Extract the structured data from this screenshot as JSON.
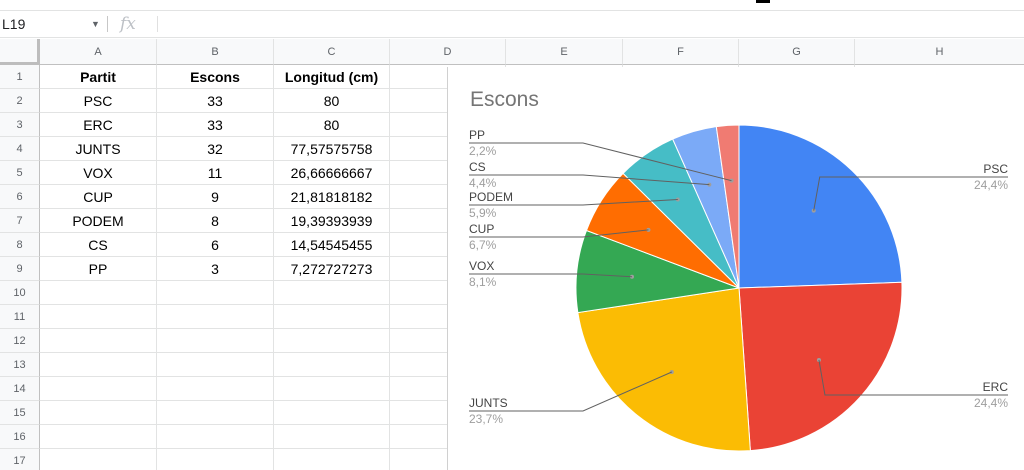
{
  "formula_bar": {
    "cell_reference": "L19",
    "fx_icon": "fx",
    "formula": ""
  },
  "columns": [
    "A",
    "B",
    "C",
    "D",
    "E",
    "F",
    "G",
    "H"
  ],
  "rows": [
    "1",
    "2",
    "3",
    "4",
    "5",
    "6",
    "7",
    "8",
    "9",
    "10",
    "11",
    "12",
    "13",
    "14",
    "15",
    "16",
    "17"
  ],
  "table": {
    "headers": [
      "Partit",
      "Escons",
      "Longitud (cm)"
    ],
    "rows": [
      [
        "PSC",
        "33",
        "80"
      ],
      [
        "ERC",
        "33",
        "80"
      ],
      [
        "JUNTS",
        "32",
        "77,57575758"
      ],
      [
        "VOX",
        "11",
        "26,66666667"
      ],
      [
        "CUP",
        "9",
        "21,81818182"
      ],
      [
        "PODEM",
        "8",
        "19,39393939"
      ],
      [
        "CS",
        "6",
        "14,54545455"
      ],
      [
        "PP",
        "3",
        "7,272727273"
      ]
    ]
  },
  "chart_data": {
    "type": "pie",
    "title": "Escons",
    "categories": [
      "PSC",
      "ERC",
      "JUNTS",
      "VOX",
      "CUP",
      "PODEM",
      "CS",
      "PP"
    ],
    "values": [
      33,
      33,
      32,
      11,
      9,
      8,
      6,
      3
    ],
    "percent_labels": [
      "24,4%",
      "24,4%",
      "23,7%",
      "8,1%",
      "6,7%",
      "5,9%",
      "4,4%",
      "2,2%"
    ],
    "colors": [
      "#4285f4",
      "#ea4335",
      "#fbbc04",
      "#34a853",
      "#ff6d01",
      "#46bdc6",
      "#7baaf7",
      "#f07b72"
    ],
    "legend": "labels with leader lines"
  }
}
